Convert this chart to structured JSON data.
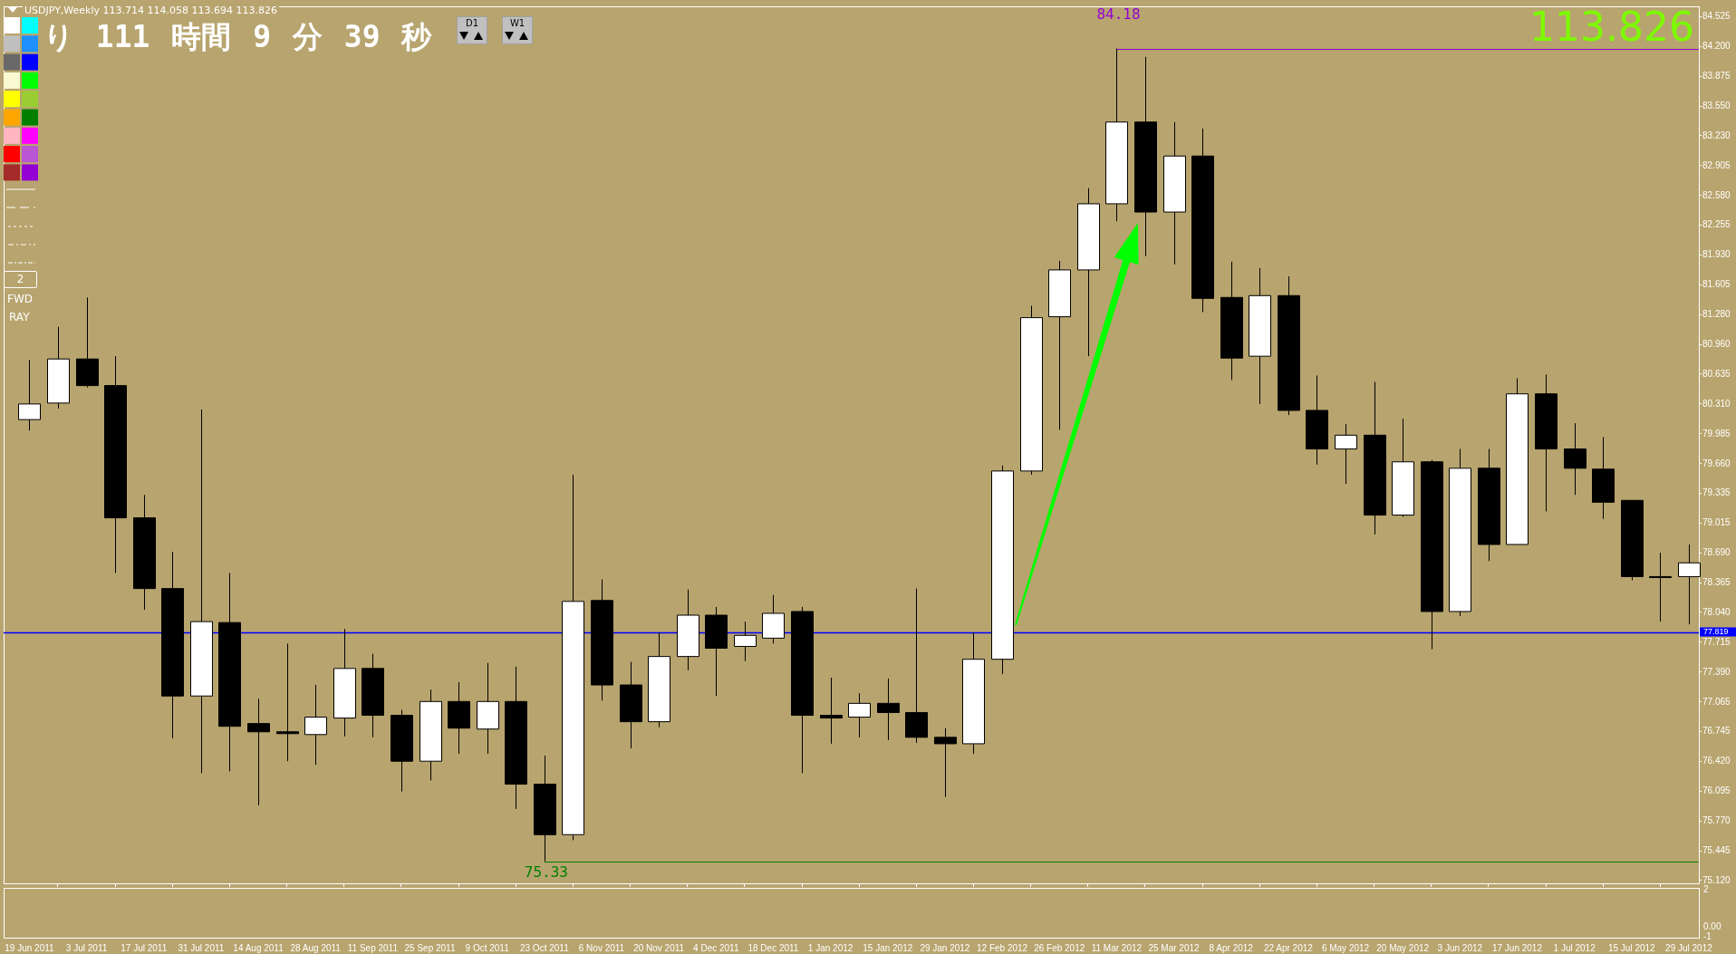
{
  "chart_data": [
    {
      "type": "candlestick",
      "title": "USDJPY,Weekly  113.714 114.058 113.694 113.826",
      "categories": [
        "19 Jun 2011",
        null,
        "3 Jul 2011",
        null,
        "17 Jul 2011",
        null,
        "31 Jul 2011",
        null,
        "14 Aug 2011",
        null,
        "28 Aug 2011",
        null,
        "11 Sep 2011",
        null,
        "25 Sep 2011",
        null,
        "9 Oct 2011",
        null,
        "23 Oct 2011",
        null,
        "6 Nov 2011",
        null,
        "20 Nov 2011",
        null,
        "4 Dec 2011",
        null,
        "18 Dec 2011",
        null,
        "1 Jan 2012",
        null,
        "15 Jan 2012",
        null,
        "29 Jan 2012",
        null,
        "12 Feb 2012",
        null,
        "26 Feb 2012",
        null,
        "11 Mar 2012",
        null,
        "25 Mar 2012",
        null,
        "8 Apr 2012",
        null,
        "22 Apr 2012",
        null,
        "6 May 2012",
        null,
        "20 May 2012",
        null,
        "3 Jun 2012",
        null,
        "17 Jun 2012",
        null,
        "1 Jul 2012",
        null,
        "15 Jul 2012",
        null,
        "29 Jul 2012"
      ],
      "ohlc": [
        [
          80.14,
          80.79,
          80.02,
          80.31
        ],
        [
          80.32,
          81.15,
          80.26,
          80.8
        ],
        [
          80.8,
          81.47,
          80.49,
          80.51
        ],
        [
          80.51,
          80.83,
          78.47,
          79.07
        ],
        [
          79.07,
          79.32,
          78.07,
          78.3
        ],
        [
          78.3,
          78.7,
          76.67,
          77.13
        ],
        [
          77.13,
          80.25,
          76.29,
          77.94
        ],
        [
          77.93,
          78.47,
          76.31,
          76.8
        ],
        [
          76.83,
          77.1,
          75.94,
          76.74
        ],
        [
          76.74,
          77.7,
          76.42,
          76.72
        ],
        [
          76.71,
          77.25,
          76.38,
          76.9
        ],
        [
          76.89,
          77.86,
          76.69,
          77.43
        ],
        [
          77.43,
          77.59,
          76.68,
          76.92
        ],
        [
          76.92,
          76.98,
          76.09,
          76.42
        ],
        [
          76.42,
          77.2,
          76.21,
          77.07
        ],
        [
          77.07,
          77.28,
          76.5,
          76.78
        ],
        [
          76.77,
          77.49,
          76.5,
          77.07
        ],
        [
          77.07,
          77.45,
          75.9,
          76.17
        ],
        [
          76.17,
          76.48,
          75.33,
          75.62
        ],
        [
          75.62,
          79.54,
          75.56,
          78.16
        ],
        [
          78.17,
          78.4,
          77.08,
          77.25
        ],
        [
          77.25,
          77.5,
          76.56,
          76.85
        ],
        [
          76.85,
          77.82,
          76.79,
          77.56
        ],
        [
          77.56,
          78.29,
          77.41,
          78.01
        ],
        [
          78.01,
          78.1,
          77.13,
          77.65
        ],
        [
          77.67,
          77.94,
          77.51,
          77.79
        ],
        [
          77.76,
          78.23,
          77.7,
          78.03
        ],
        [
          78.05,
          78.1,
          76.29,
          76.92
        ],
        [
          76.92,
          77.33,
          76.61,
          76.89
        ],
        [
          76.9,
          77.16,
          76.68,
          77.05
        ],
        [
          77.05,
          77.32,
          76.65,
          76.95
        ],
        [
          76.95,
          78.3,
          76.62,
          76.68
        ],
        [
          76.68,
          76.78,
          76.03,
          76.61
        ],
        [
          76.61,
          77.82,
          76.5,
          77.53
        ],
        [
          77.53,
          79.64,
          77.37,
          79.58
        ],
        [
          79.58,
          81.38,
          79.54,
          81.25
        ],
        [
          81.26,
          81.87,
          80.03,
          81.77
        ],
        [
          81.77,
          82.66,
          80.83,
          82.49
        ],
        [
          82.49,
          84.18,
          82.3,
          83.38
        ],
        [
          83.38,
          84.09,
          81.92,
          82.4
        ],
        [
          82.4,
          83.38,
          81.83,
          83.01
        ],
        [
          83.01,
          83.31,
          81.31,
          81.46
        ],
        [
          81.47,
          81.86,
          80.57,
          80.81
        ],
        [
          80.83,
          81.79,
          80.31,
          81.49
        ],
        [
          81.49,
          81.7,
          80.19,
          80.24
        ],
        [
          80.24,
          80.62,
          79.65,
          79.82
        ],
        [
          79.82,
          80.09,
          79.44,
          79.97
        ],
        [
          79.97,
          80.55,
          78.89,
          79.1
        ],
        [
          79.1,
          80.15,
          79.08,
          79.68
        ],
        [
          79.68,
          79.7,
          77.64,
          78.05
        ],
        [
          78.05,
          79.82,
          78.0,
          79.61
        ],
        [
          79.61,
          79.82,
          78.6,
          78.78
        ],
        [
          78.78,
          80.59,
          78.78,
          80.42
        ],
        [
          80.42,
          80.63,
          79.14,
          79.82
        ],
        [
          79.82,
          80.1,
          79.32,
          79.61
        ],
        [
          79.6,
          79.95,
          79.06,
          79.24
        ],
        [
          79.26,
          79.26,
          78.39,
          78.43
        ],
        [
          78.43,
          78.69,
          77.94,
          78.42
        ],
        [
          78.43,
          78.78,
          77.91,
          78.58
        ]
      ],
      "colors": [
        "#ffffff",
        "#ffffff",
        "#000000",
        "#000000",
        "#000000",
        "#000000",
        "#ffffff",
        "#000000",
        "#000000",
        "#000000",
        "#ffffff",
        "#ffffff",
        "#000000",
        "#000000",
        "#ffffff",
        "#000000",
        "#ffffff",
        "#000000",
        "#000000",
        "#ffffff",
        "#000000",
        "#000000",
        "#ffffff",
        "#ffffff",
        "#000000",
        "#ffffff",
        "#ffffff",
        "#000000",
        "#000000",
        "#ffffff",
        "#000000",
        "#000000",
        "#000000",
        "#ffffff",
        "#ffffff",
        "#ffffff",
        "#ffffff",
        "#ffffff",
        "#ffffff",
        "#000000",
        "#ffffff",
        "#000000",
        "#000000",
        "#ffffff",
        "#000000",
        "#000000",
        "#ffffff",
        "#000000",
        "#ffffff",
        "#000000",
        "#ffffff",
        "#000000",
        "#ffffff",
        "#000000",
        "#000000",
        "#000000",
        "#000000",
        "#000000",
        "#ffffff"
      ],
      "ylim": [
        75.09,
        84.64
      ],
      "yticks": [
        84.525,
        {
          "value": 84.2,
          "label": "84.200"
        },
        83.875,
        {
          "value": 83.55,
          "label": "83.550"
        },
        {
          "value": 83.23,
          "label": "83.230"
        },
        82.905,
        {
          "value": 82.58,
          "label": "82.580"
        },
        82.255,
        {
          "value": 81.93,
          "label": "81.930"
        },
        81.605,
        {
          "value": 81.28,
          "label": "81.280"
        },
        {
          "value": 80.96,
          "label": "80.960"
        },
        80.635,
        {
          "value": 80.31,
          "label": "80.310"
        },
        79.985,
        {
          "value": 79.66,
          "label": "79.660"
        },
        79.335,
        79.015,
        {
          "value": 78.69,
          "label": "78.690"
        },
        78.365,
        {
          "value": 78.04,
          "label": "78.040"
        },
        77.715,
        {
          "value": 77.39,
          "label": "77.390"
        },
        77.065,
        76.745,
        {
          "value": 76.42,
          "label": "76.420"
        },
        76.095,
        {
          "value": 75.77,
          "label": "75.770"
        },
        75.445,
        {
          "value": 75.12,
          "label": "75.120"
        }
      ],
      "ref_lines": [
        {
          "axis": "y",
          "value": 77.819,
          "label": "77.819",
          "color": "#0000ff"
        },
        {
          "axis": "y",
          "value": 84.18,
          "label": "84.18",
          "color": "#9400d3"
        },
        {
          "axis": "y",
          "value": 75.33,
          "label": "75.33",
          "color": "#008000"
        }
      ],
      "annotations": [
        "り 111 時間 9 分 39 秒",
        "113.826",
        "D1",
        "W1",
        "2",
        "FWD",
        "RAY"
      ]
    },
    {
      "type": "other",
      "annotations": [
        "2",
        "0.00",
        "-1"
      ]
    }
  ]
}
